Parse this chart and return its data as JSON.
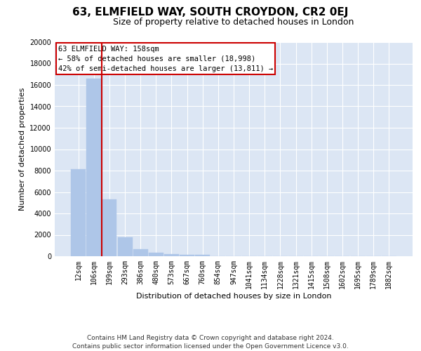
{
  "title": "63, ELMFIELD WAY, SOUTH CROYDON, CR2 0EJ",
  "subtitle": "Size of property relative to detached houses in London",
  "xlabel": "Distribution of detached houses by size in London",
  "ylabel": "Number of detached properties",
  "footer_line1": "Contains HM Land Registry data © Crown copyright and database right 2024.",
  "footer_line2": "Contains public sector information licensed under the Open Government Licence v3.0.",
  "bar_labels": [
    "12sqm",
    "106sqm",
    "199sqm",
    "293sqm",
    "386sqm",
    "480sqm",
    "573sqm",
    "667sqm",
    "760sqm",
    "854sqm",
    "947sqm",
    "1041sqm",
    "1134sqm",
    "1228sqm",
    "1321sqm",
    "1415sqm",
    "1508sqm",
    "1602sqm",
    "1695sqm",
    "1789sqm",
    "1882sqm"
  ],
  "bar_values": [
    8100,
    16600,
    5300,
    1750,
    650,
    350,
    200,
    150,
    120,
    0,
    0,
    0,
    0,
    0,
    0,
    0,
    0,
    0,
    0,
    0,
    0
  ],
  "bar_color": "#aec6e8",
  "bar_edge_color": "#aec6e8",
  "vline_x": 1.5,
  "vline_color": "#cc0000",
  "annotation_text": "63 ELMFIELD WAY: 158sqm\n← 58% of detached houses are smaller (18,998)\n42% of semi-detached houses are larger (13,811) →",
  "annotation_box_color": "#ffffff",
  "annotation_box_edge": "#cc0000",
  "ylim": [
    0,
    20000
  ],
  "yticks": [
    0,
    2000,
    4000,
    6000,
    8000,
    10000,
    12000,
    14000,
    16000,
    18000,
    20000
  ],
  "plot_bg_color": "#dce6f4",
  "grid_color": "#ffffff",
  "title_fontsize": 11,
  "subtitle_fontsize": 9,
  "label_fontsize": 8,
  "tick_fontsize": 7,
  "footer_fontsize": 6.5
}
